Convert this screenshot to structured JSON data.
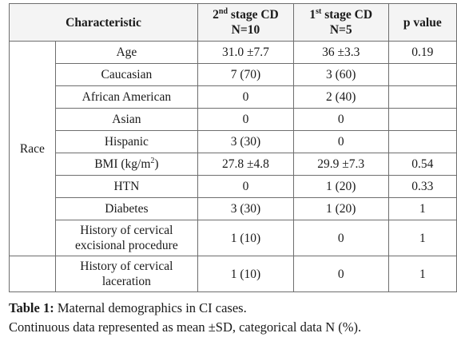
{
  "table": {
    "headers": {
      "characteristic": "Characteristic",
      "col2_line1_pre": "2",
      "col2_line1_sup": "nd",
      "col2_line1_post": " stage CD",
      "col2_line2": "N=10",
      "col1_line1_pre": "1",
      "col1_line1_sup": "st",
      "col1_line1_post": " stage CD",
      "col1_line2": "N=5",
      "pvalue": "p value"
    },
    "group_label": "Race",
    "rows": [
      {
        "label": "Age",
        "second": "31.0 ±7.7",
        "first": "36 ±3.3",
        "p": "0.19"
      },
      {
        "label": "Caucasian",
        "second": "7 (70)",
        "first": "3 (60)",
        "p": ""
      },
      {
        "label": "African American",
        "second": "0",
        "first": "2 (40)",
        "p": ""
      },
      {
        "label": "Asian",
        "second": "0",
        "first": "0",
        "p": ""
      },
      {
        "label": "Hispanic",
        "second": "3 (30)",
        "first": "0",
        "p": ""
      },
      {
        "label_pre": "BMI (kg/m",
        "label_sup": "2",
        "label_post": ")",
        "second": "27.8 ±4.8",
        "first": "29.9 ±7.3",
        "p": "0.54"
      },
      {
        "label": "HTN",
        "second": "0",
        "first": "1 (20)",
        "p": "0.33"
      },
      {
        "label": "Diabetes",
        "second": "3 (30)",
        "first": "1 (20)",
        "p": "1"
      },
      {
        "label_line1": "History of cervical",
        "label_line2": "excisional procedure",
        "second": "1 (10)",
        "first": "0",
        "p": "1"
      },
      {
        "label_line1": "History of cervical",
        "label_line2": "laceration",
        "second": "1 (10)",
        "first": "0",
        "p": "1"
      }
    ]
  },
  "caption": {
    "label": "Table 1:",
    "title": " Maternal demographics in CI cases.",
    "note": "Continuous data represented as mean ±SD, categorical data N (%)."
  }
}
